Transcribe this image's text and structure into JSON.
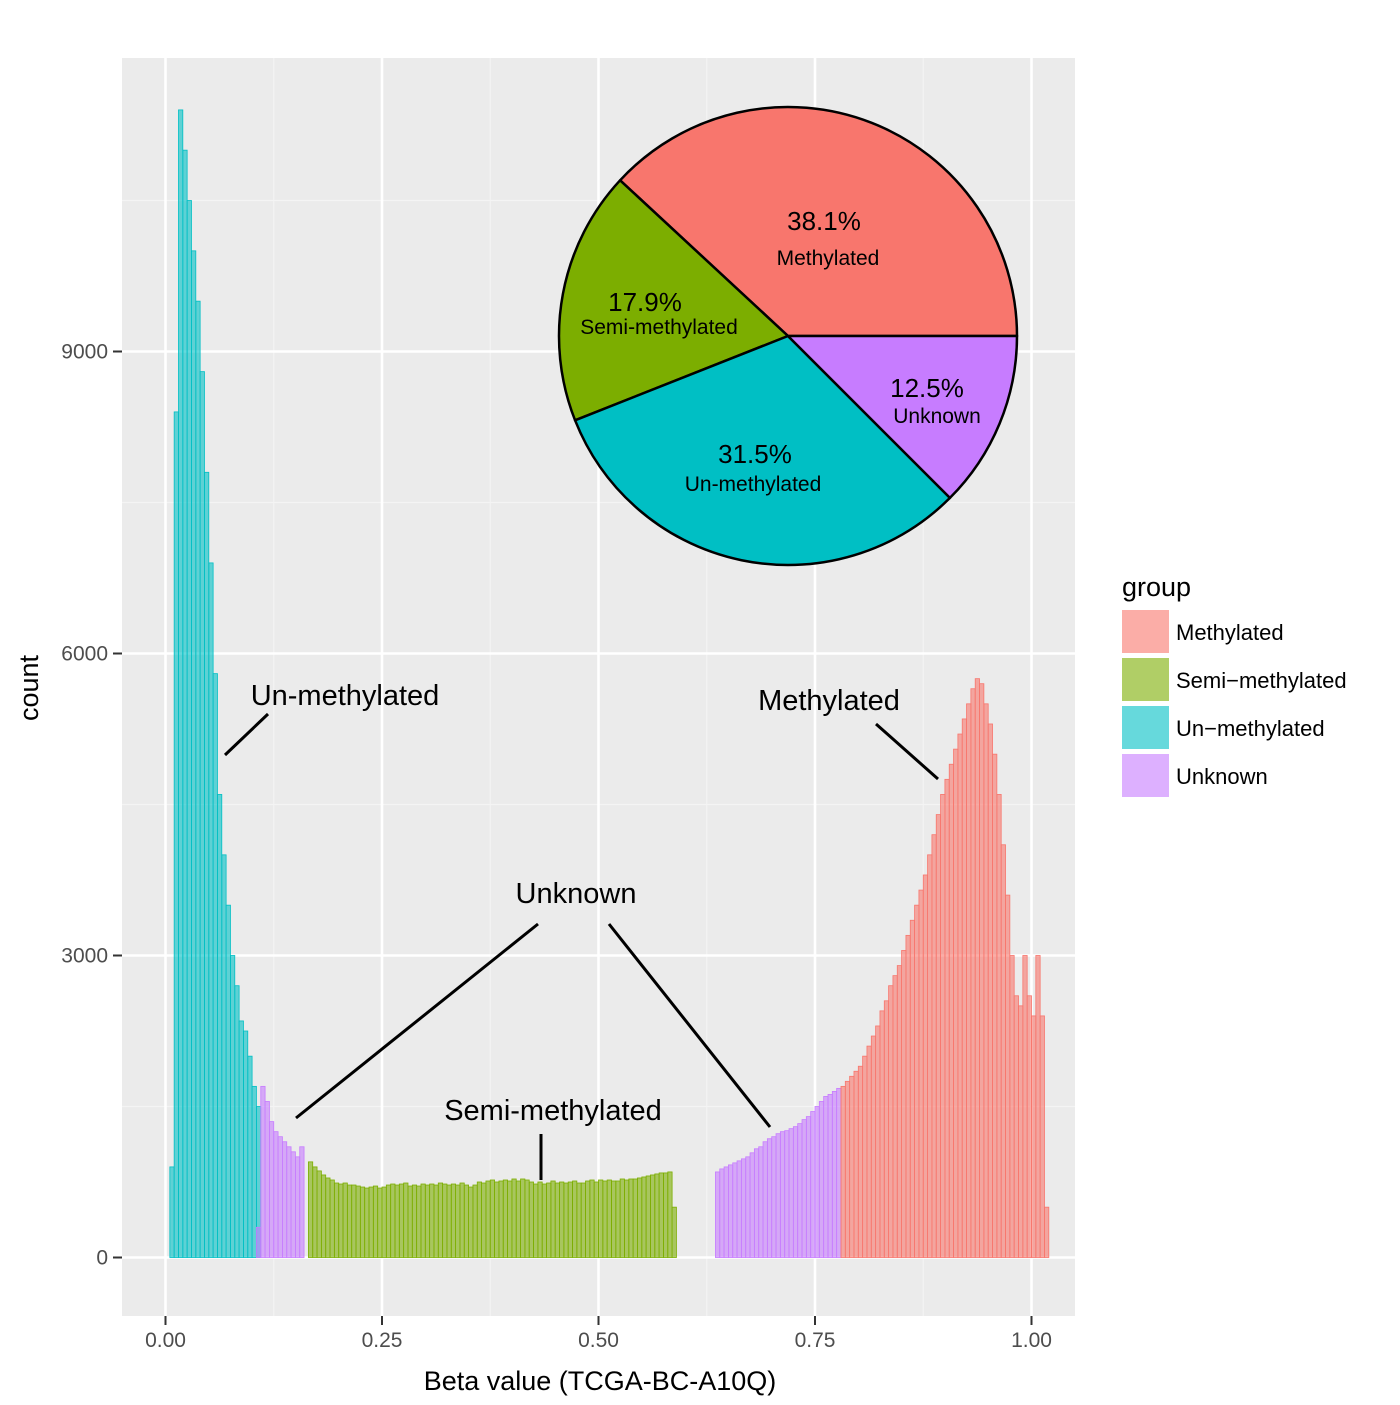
{
  "chart_data": {
    "type": "bar",
    "subtype": "histogram",
    "xlabel": "Beta value (TCGA-BC-A10Q)",
    "ylabel": "count",
    "xlim": [
      -0.1,
      1.1
    ],
    "ylim": [
      -500,
      11900
    ],
    "x_ticks": [
      "0.00",
      "0.25",
      "0.50",
      "0.75",
      "1.00"
    ],
    "y_ticks": [
      "0",
      "3000",
      "6000",
      "9000"
    ],
    "grid": true,
    "bin_width": 0.005,
    "legend": {
      "title": "group",
      "position": "right",
      "items": [
        {
          "label": "Methylated",
          "color": "#F8766D"
        },
        {
          "label": "Semi−methylated",
          "color": "#7CAE00"
        },
        {
          "label": "Un−methylated",
          "color": "#00BFC4"
        },
        {
          "label": "Unknown",
          "color": "#C77CFF"
        }
      ]
    },
    "series": [
      {
        "name": "Un−methylated",
        "color": "#00BFC4",
        "x_start": 0.005,
        "values": [
          900,
          8400,
          11400,
          11000,
          10500,
          10000,
          9500,
          8800,
          7800,
          6900,
          5800,
          4600,
          4000,
          3500,
          3000,
          2700,
          2350,
          2250,
          2000,
          1700,
          1500
        ]
      },
      {
        "name": "Unknown",
        "color": "#C77CFF",
        "x_start": 0.105,
        "values": [
          300,
          1700,
          1550,
          1350,
          1250,
          1200,
          1150,
          1100,
          1050,
          1000,
          1100
        ]
      },
      {
        "name": "Semi−methylated",
        "color": "#7CAE00",
        "x_start": 0.165,
        "values": [
          950,
          900,
          860,
          820,
          790,
          770,
          740,
          730,
          740,
          720,
          720,
          710,
          700,
          690,
          700,
          710,
          690,
          700,
          720,
          730,
          720,
          730,
          740,
          710,
          720,
          710,
          730,
          720,
          730,
          720,
          740,
          730,
          720,
          730,
          720,
          740,
          720,
          700,
          720,
          750,
          740,
          760,
          770,
          750,
          760,
          770,
          760,
          780,
          760,
          780,
          770,
          750,
          730,
          750,
          730,
          740,
          760,
          740,
          750,
          740,
          750,
          760,
          740,
          740,
          760,
          770,
          750,
          770,
          760,
          770,
          760,
          760,
          780,
          770,
          780,
          780,
          790,
          800,
          810,
          820,
          830,
          840,
          840,
          850,
          500
        ]
      },
      {
        "name": "Unknown",
        "color": "#C77CFF",
        "x_start": 0.635,
        "values": [
          850,
          880,
          900,
          920,
          940,
          960,
          980,
          1000,
          1040,
          1080,
          1100,
          1150,
          1180,
          1200,
          1230,
          1250,
          1260,
          1280,
          1300,
          1330,
          1370,
          1400,
          1450,
          1500,
          1550,
          1600,
          1620,
          1650,
          1680
        ]
      },
      {
        "name": "Methylated",
        "color": "#F8766D",
        "x_start": 0.78,
        "values": [
          1700,
          1750,
          1800,
          1850,
          1900,
          2000,
          2100,
          2200,
          2300,
          2450,
          2550,
          2700,
          2800,
          2900,
          3050,
          3200,
          3350,
          3500,
          3650,
          3800,
          4000,
          4200,
          4400,
          4600,
          4750,
          4900,
          5050,
          5200,
          5350,
          5500,
          5650,
          5750,
          5700,
          5500,
          5300,
          5000,
          4600,
          4100,
          3600,
          3000,
          2600,
          2500,
          3000,
          2600,
          2400,
          3000,
          2400,
          500
        ]
      }
    ],
    "annotations": [
      {
        "text": "Un-methylated"
      },
      {
        "text": "Methylated"
      },
      {
        "text": "Unknown"
      },
      {
        "text": "Semi-methylated"
      }
    ],
    "inset_pie": {
      "type": "pie",
      "slices": [
        {
          "label": "Methylated",
          "percent_label": "38.1%",
          "value": 38.1,
          "color": "#F8766D"
        },
        {
          "label": "Semi-methylated",
          "percent_label": "17.9%",
          "value": 17.9,
          "color": "#7CAE00"
        },
        {
          "label": "Un-methylated",
          "percent_label": "31.5%",
          "value": 31.5,
          "color": "#00BFC4"
        },
        {
          "label": "Unknown",
          "percent_label": "12.5%",
          "value": 12.5,
          "color": "#C77CFF"
        }
      ]
    }
  }
}
